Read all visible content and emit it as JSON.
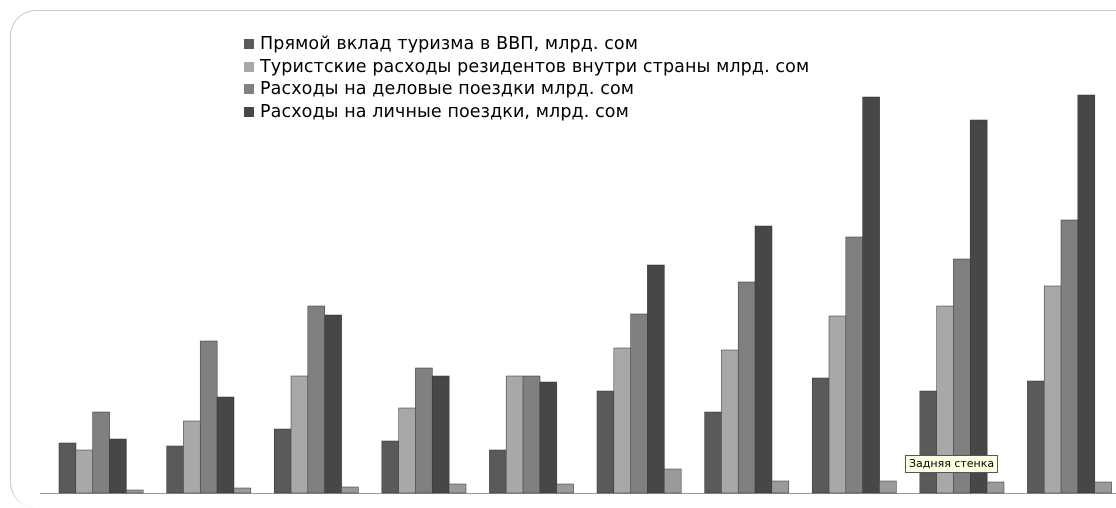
{
  "chart_data": {
    "type": "bar",
    "title": "",
    "xlabel": "",
    "ylabel": "",
    "categories": [
      "",
      "",
      "",
      "",
      "",
      "",
      "",
      "",
      "",
      ""
    ],
    "series": [
      {
        "name": "Прямой вклад туризма в ВВП, млрд. сом",
        "color": "#5a5a5a",
        "values": [
          50,
          47,
          64,
          52,
          43,
          102,
          81,
          115,
          102,
          112
        ]
      },
      {
        "name": "Туристские расходы резидентов внутри страны млрд. сом",
        "color": "#a8a8a8",
        "values": [
          43,
          72,
          117,
          85,
          117,
          145,
          143,
          177,
          187,
          207
        ]
      },
      {
        "name": "Расходы на деловые поездки млрд. сом",
        "color": "#808080",
        "values": [
          81,
          152,
          187,
          125,
          117,
          179,
          211,
          256,
          234,
          273
        ]
      },
      {
        "name": "Расходы на личные поездки, млрд. сом",
        "color": "#474747",
        "values": [
          54,
          96,
          178,
          117,
          111,
          228,
          267,
          396,
          373,
          398
        ]
      },
      {
        "name": "",
        "color": "#9a9a9a",
        "values": [
          3,
          5,
          6,
          9,
          9,
          24,
          12,
          12,
          11,
          11
        ]
      }
    ],
    "legend_position": "top-center",
    "grid": false
  },
  "tooltip": "Задняя стенка"
}
